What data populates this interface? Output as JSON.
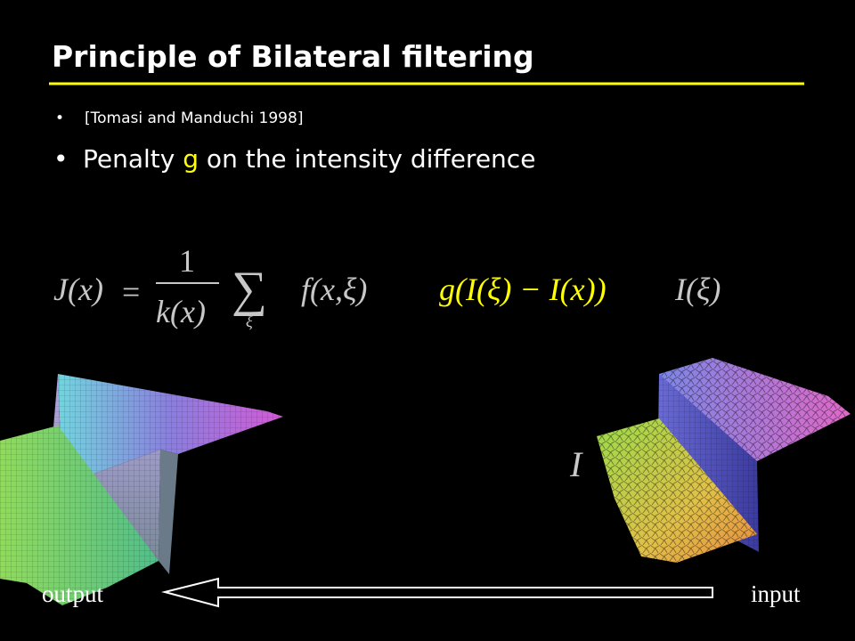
{
  "header": {
    "title": "Principle of Bilateral filtering"
  },
  "bullets": [
    {
      "text": "[Tomasi and Manduchi 1998]"
    },
    {
      "parts": [
        "Penalty ",
        "g",
        " on the intensity difference"
      ]
    }
  ],
  "equation": {
    "lhs": "J(x)",
    "equals": "=",
    "numerator": "1",
    "denominator": "k(x)",
    "sum": "∑",
    "sum_index": "ξ",
    "spatial": "f(x,ξ)",
    "range": "g(I(ξ) − I(x))",
    "intensity": "I(ξ)"
  },
  "axis_symbol": "I",
  "labels": {
    "output": "output",
    "input": "input"
  }
}
